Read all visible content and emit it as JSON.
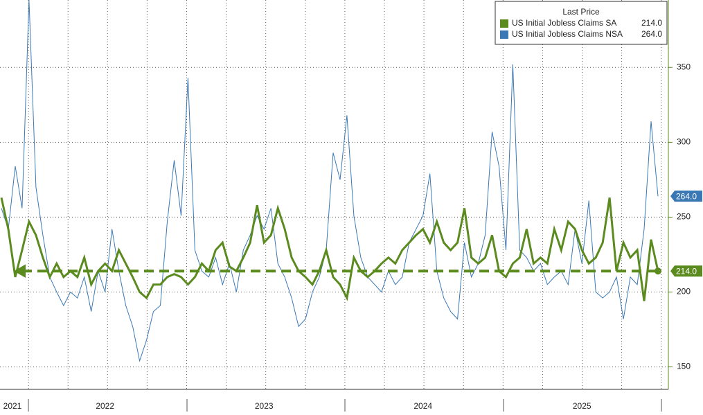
{
  "chart_data": {
    "type": "line",
    "legend_title": "Last Price",
    "categories": [
      null,
      null,
      "2021",
      null,
      null,
      null,
      null,
      null,
      null,
      null,
      null,
      null,
      null,
      null,
      null,
      "2022",
      null,
      null,
      null,
      null,
      null,
      null,
      null,
      null,
      null,
      null,
      null,
      null,
      null,
      null,
      null,
      null,
      null,
      null,
      null,
      null,
      null,
      null,
      "2023",
      null,
      null,
      null,
      null,
      null,
      null,
      null,
      null,
      null,
      null,
      null,
      null,
      null,
      null,
      null,
      null,
      null,
      null,
      null,
      null,
      null,
      null,
      "2024",
      null,
      null,
      null,
      null,
      null,
      null,
      null,
      null,
      null,
      null,
      null,
      null,
      null,
      null,
      null,
      null,
      null,
      null,
      null,
      null,
      null,
      null,
      "2025",
      null,
      null,
      null,
      null,
      null,
      null,
      null,
      null,
      null,
      null,
      null
    ],
    "series": [
      {
        "name": "US Initial Jobless Claims SA",
        "color": "#5b8a1e",
        "values": [
          263,
          242,
          210,
          228,
          247,
          238,
          223,
          210,
          219,
          210,
          214,
          210,
          223,
          205,
          214,
          219,
          214,
          228,
          219,
          210,
          200,
          196,
          205,
          205,
          210,
          212,
          210,
          205,
          210,
          219,
          214,
          228,
          233,
          217,
          214,
          223,
          233,
          258,
          233,
          238,
          256,
          242,
          223,
          214,
          210,
          205,
          214,
          228,
          210,
          205,
          196,
          223,
          214,
          210,
          214,
          219,
          223,
          219,
          228,
          233,
          238,
          242,
          233,
          247,
          233,
          228,
          233,
          256,
          223,
          219,
          223,
          238,
          214,
          210,
          219,
          223,
          242,
          219,
          223,
          219,
          242,
          228,
          247,
          242,
          228,
          219,
          223,
          233,
          263,
          214,
          233,
          223,
          228,
          194,
          235,
          214
        ],
        "value_labels": [
          null,
          null,
          null,
          null,
          null,
          null,
          null,
          null,
          null,
          null,
          null,
          null,
          null,
          null,
          null,
          null,
          null,
          null,
          null,
          null,
          null,
          null,
          null,
          null,
          null,
          null,
          null,
          null,
          null,
          null,
          null,
          null,
          null,
          null,
          null,
          null,
          null,
          null,
          null,
          null,
          null,
          null,
          null,
          null,
          null,
          null,
          null,
          null,
          null,
          null,
          null,
          null,
          null,
          null,
          null,
          null,
          null,
          null,
          null,
          null,
          null,
          null,
          null,
          null,
          null,
          null,
          null,
          null,
          null,
          null,
          null,
          null,
          null,
          null,
          null,
          null,
          null,
          null,
          null,
          null,
          null,
          null,
          null,
          null,
          null,
          null,
          null,
          null,
          null,
          null,
          null,
          null,
          null,
          null,
          null,
          "214.0"
        ]
      },
      {
        "name": "US Initial Jobless Claims NSA",
        "color": "#3a78b5",
        "values": [
          256,
          242,
          284,
          256,
          395,
          270,
          238,
          210,
          200,
          191,
          200,
          196,
          210,
          187,
          214,
          200,
          242,
          214,
          191,
          177,
          154,
          168,
          187,
          191,
          247,
          288,
          251,
          343,
          228,
          214,
          210,
          223,
          205,
          219,
          200,
          228,
          238,
          251,
          242,
          256,
          219,
          210,
          196,
          177,
          182,
          200,
          210,
          228,
          293,
          275,
          318,
          251,
          223,
          210,
          205,
          200,
          214,
          205,
          210,
          233,
          242,
          251,
          279,
          214,
          196,
          187,
          182,
          233,
          210,
          219,
          238,
          307,
          284,
          228,
          352,
          228,
          223,
          214,
          219,
          205,
          210,
          214,
          205,
          242,
          219,
          261,
          200,
          196,
          200,
          210,
          182,
          210,
          205,
          242,
          314,
          264
        ],
        "value_labels": [
          null,
          null,
          null,
          null,
          null,
          null,
          null,
          null,
          null,
          null,
          null,
          null,
          null,
          null,
          null,
          null,
          null,
          null,
          null,
          null,
          null,
          null,
          null,
          null,
          null,
          null,
          null,
          null,
          null,
          null,
          null,
          null,
          null,
          null,
          null,
          null,
          null,
          null,
          null,
          null,
          null,
          null,
          null,
          null,
          null,
          null,
          null,
          null,
          null,
          null,
          null,
          null,
          null,
          null,
          null,
          null,
          null,
          null,
          null,
          null,
          null,
          null,
          null,
          null,
          null,
          null,
          null,
          null,
          null,
          null,
          null,
          null,
          null,
          null,
          null,
          null,
          null,
          null,
          null,
          null,
          null,
          null,
          null,
          null,
          null,
          null,
          null,
          null,
          null,
          null,
          null,
          null,
          null,
          null,
          null,
          "264.0"
        ]
      }
    ],
    "ylim": [
      135,
      395
    ],
    "yticks": [
      150,
      200,
      250,
      300,
      350
    ],
    "grid": true,
    "legend": "upper right"
  }
}
